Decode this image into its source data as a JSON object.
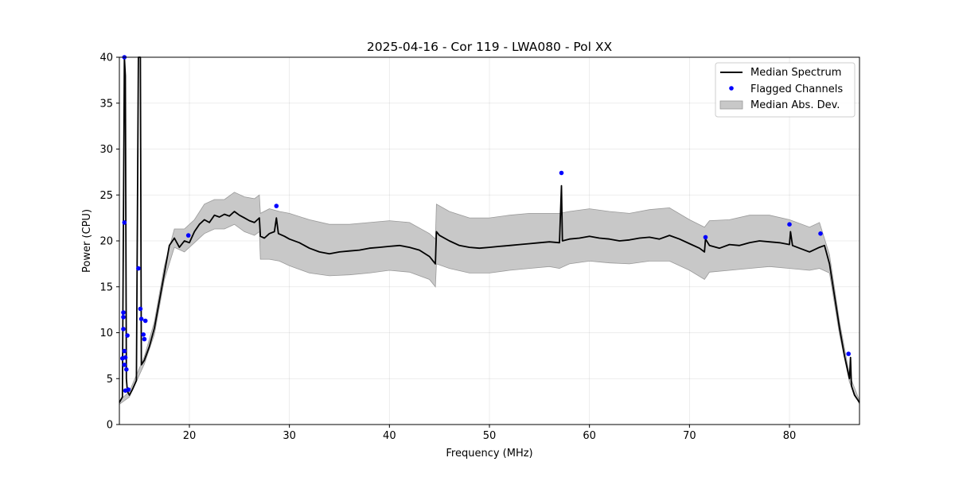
{
  "chart_data": {
    "type": "line",
    "title": "2025-04-16 - Cor 119 - LWA080 - Pol XX",
    "xlabel": "Frequency (MHz)",
    "ylabel": "Power (CPU)",
    "xlim": [
      13.0,
      87.0
    ],
    "ylim": [
      0,
      40
    ],
    "xticks": [
      20,
      30,
      40,
      50,
      60,
      70,
      80
    ],
    "yticks": [
      0,
      5,
      10,
      15,
      20,
      25,
      30,
      35,
      40
    ],
    "grid": true,
    "legend_position": "top-right",
    "series": [
      {
        "name": "Median Spectrum",
        "color": "#000000",
        "points": [
          [
            13.0,
            2.4
          ],
          [
            13.3,
            3.0
          ],
          [
            13.5,
            40.0
          ],
          [
            13.6,
            38.0
          ],
          [
            13.7,
            5.0
          ],
          [
            13.8,
            3.6
          ],
          [
            14.0,
            3.2
          ],
          [
            14.3,
            3.8
          ],
          [
            14.7,
            4.8
          ],
          [
            14.9,
            40.0
          ],
          [
            15.1,
            40.0
          ],
          [
            15.2,
            6.5
          ],
          [
            15.5,
            7.0
          ],
          [
            16.0,
            8.5
          ],
          [
            16.5,
            10.5
          ],
          [
            17.0,
            13.5
          ],
          [
            17.5,
            16.5
          ],
          [
            18.0,
            19.5
          ],
          [
            18.5,
            20.3
          ],
          [
            19.0,
            19.3
          ],
          [
            19.5,
            20.0
          ],
          [
            20.0,
            19.8
          ],
          [
            20.5,
            21.0
          ],
          [
            21.0,
            21.8
          ],
          [
            21.5,
            22.3
          ],
          [
            22.0,
            22.0
          ],
          [
            22.5,
            22.8
          ],
          [
            23.0,
            22.6
          ],
          [
            23.5,
            22.9
          ],
          [
            24.0,
            22.7
          ],
          [
            24.5,
            23.2
          ],
          [
            25.0,
            22.8
          ],
          [
            25.5,
            22.5
          ],
          [
            26.0,
            22.2
          ],
          [
            26.5,
            22.0
          ],
          [
            27.0,
            22.5
          ],
          [
            27.1,
            20.5
          ],
          [
            27.5,
            20.3
          ],
          [
            28.0,
            20.8
          ],
          [
            28.5,
            21.0
          ],
          [
            28.7,
            22.5
          ],
          [
            28.9,
            20.8
          ],
          [
            29.5,
            20.5
          ],
          [
            30.0,
            20.2
          ],
          [
            31.0,
            19.8
          ],
          [
            32.0,
            19.2
          ],
          [
            33.0,
            18.8
          ],
          [
            34.0,
            18.6
          ],
          [
            35.0,
            18.8
          ],
          [
            36.0,
            18.9
          ],
          [
            37.0,
            19.0
          ],
          [
            38.0,
            19.2
          ],
          [
            39.0,
            19.3
          ],
          [
            40.0,
            19.4
          ],
          [
            41.0,
            19.5
          ],
          [
            42.0,
            19.3
          ],
          [
            43.0,
            19.0
          ],
          [
            44.0,
            18.3
          ],
          [
            44.6,
            17.5
          ],
          [
            44.7,
            21.0
          ],
          [
            45.0,
            20.6
          ],
          [
            46.0,
            20.0
          ],
          [
            47.0,
            19.5
          ],
          [
            48.0,
            19.3
          ],
          [
            49.0,
            19.2
          ],
          [
            50.0,
            19.3
          ],
          [
            51.0,
            19.4
          ],
          [
            52.0,
            19.5
          ],
          [
            53.0,
            19.6
          ],
          [
            54.0,
            19.7
          ],
          [
            55.0,
            19.8
          ],
          [
            56.0,
            19.9
          ],
          [
            57.0,
            19.8
          ],
          [
            57.2,
            26.0
          ],
          [
            57.3,
            20.0
          ],
          [
            58.0,
            20.2
          ],
          [
            59.0,
            20.3
          ],
          [
            60.0,
            20.5
          ],
          [
            61.0,
            20.3
          ],
          [
            62.0,
            20.2
          ],
          [
            63.0,
            20.0
          ],
          [
            64.0,
            20.1
          ],
          [
            65.0,
            20.3
          ],
          [
            66.0,
            20.4
          ],
          [
            67.0,
            20.2
          ],
          [
            68.0,
            20.6
          ],
          [
            69.0,
            20.2
          ],
          [
            70.0,
            19.7
          ],
          [
            71.0,
            19.2
          ],
          [
            71.5,
            18.8
          ],
          [
            71.6,
            20.2
          ],
          [
            72.0,
            19.5
          ],
          [
            73.0,
            19.2
          ],
          [
            74.0,
            19.6
          ],
          [
            75.0,
            19.5
          ],
          [
            76.0,
            19.8
          ],
          [
            77.0,
            20.0
          ],
          [
            78.0,
            19.9
          ],
          [
            79.0,
            19.8
          ],
          [
            80.0,
            19.6
          ],
          [
            80.1,
            21.0
          ],
          [
            80.3,
            19.5
          ],
          [
            81.0,
            19.2
          ],
          [
            82.0,
            18.8
          ],
          [
            83.0,
            19.3
          ],
          [
            83.5,
            19.5
          ],
          [
            84.0,
            17.5
          ],
          [
            84.5,
            14.0
          ],
          [
            85.0,
            10.5
          ],
          [
            85.5,
            7.5
          ],
          [
            86.0,
            5.0
          ],
          [
            86.1,
            7.3
          ],
          [
            86.2,
            4.2
          ],
          [
            86.5,
            3.2
          ],
          [
            87.0,
            2.4
          ]
        ]
      },
      {
        "name": "Median Abs. Dev.",
        "color": "#c8c8c8",
        "band": [
          [
            13.0,
            2.2,
            2.6
          ],
          [
            14.0,
            3.0,
            3.6
          ],
          [
            15.5,
            6.6,
            7.4
          ],
          [
            16.5,
            9.8,
            11.2
          ],
          [
            17.5,
            15.8,
            17.3
          ],
          [
            18.5,
            19.3,
            21.3
          ],
          [
            19.5,
            18.8,
            21.3
          ],
          [
            20.5,
            19.8,
            22.3
          ],
          [
            21.5,
            20.8,
            24.0
          ],
          [
            22.5,
            21.3,
            24.5
          ],
          [
            23.5,
            21.3,
            24.5
          ],
          [
            24.5,
            21.8,
            25.3
          ],
          [
            25.5,
            21.0,
            24.8
          ],
          [
            26.5,
            20.6,
            24.6
          ],
          [
            27.0,
            21.0,
            25.0
          ],
          [
            27.1,
            18.0,
            23.0
          ],
          [
            28.0,
            18.0,
            23.5
          ],
          [
            29.0,
            17.8,
            23.2
          ],
          [
            30.0,
            17.3,
            23.0
          ],
          [
            32.0,
            16.5,
            22.3
          ],
          [
            34.0,
            16.2,
            21.8
          ],
          [
            36.0,
            16.3,
            21.8
          ],
          [
            38.0,
            16.5,
            22.0
          ],
          [
            40.0,
            16.8,
            22.2
          ],
          [
            42.0,
            16.6,
            22.0
          ],
          [
            44.0,
            15.8,
            20.8
          ],
          [
            44.6,
            15.0,
            20.2
          ],
          [
            44.7,
            17.5,
            24.0
          ],
          [
            46.0,
            17.0,
            23.2
          ],
          [
            48.0,
            16.5,
            22.5
          ],
          [
            50.0,
            16.5,
            22.5
          ],
          [
            52.0,
            16.8,
            22.8
          ],
          [
            54.0,
            17.0,
            23.0
          ],
          [
            56.0,
            17.2,
            23.0
          ],
          [
            57.0,
            17.0,
            23.0
          ],
          [
            58.0,
            17.5,
            23.2
          ],
          [
            60.0,
            17.8,
            23.5
          ],
          [
            62.0,
            17.6,
            23.2
          ],
          [
            64.0,
            17.5,
            23.0
          ],
          [
            66.0,
            17.8,
            23.4
          ],
          [
            68.0,
            17.8,
            23.6
          ],
          [
            70.0,
            16.8,
            22.3
          ],
          [
            71.5,
            15.8,
            21.5
          ],
          [
            72.0,
            16.6,
            22.2
          ],
          [
            74.0,
            16.8,
            22.3
          ],
          [
            76.0,
            17.0,
            22.8
          ],
          [
            78.0,
            17.2,
            22.8
          ],
          [
            80.0,
            17.0,
            22.3
          ],
          [
            82.0,
            16.8,
            21.5
          ],
          [
            83.0,
            17.0,
            22.0
          ],
          [
            84.0,
            16.5,
            18.5
          ],
          [
            85.0,
            9.8,
            11.2
          ],
          [
            86.0,
            4.6,
            5.4
          ],
          [
            87.0,
            2.2,
            2.6
          ]
        ]
      }
    ],
    "flagged_channels": {
      "name": "Flagged Channels",
      "color": "#0000ff",
      "points": [
        [
          13.5,
          40.0
        ],
        [
          13.5,
          22.0
        ],
        [
          13.4,
          12.2
        ],
        [
          13.4,
          11.7
        ],
        [
          13.4,
          10.4
        ],
        [
          13.5,
          8.0
        ],
        [
          13.6,
          7.3
        ],
        [
          13.3,
          7.2
        ],
        [
          13.5,
          6.5
        ],
        [
          13.7,
          6.0
        ],
        [
          13.8,
          9.7
        ],
        [
          13.6,
          3.7
        ],
        [
          13.9,
          3.8
        ],
        [
          14.9,
          17.0
        ],
        [
          15.1,
          12.6
        ],
        [
          15.2,
          11.5
        ],
        [
          15.6,
          11.3
        ],
        [
          15.4,
          9.8
        ],
        [
          15.5,
          9.3
        ],
        [
          19.9,
          20.6
        ],
        [
          28.7,
          23.8
        ],
        [
          57.2,
          27.4
        ],
        [
          71.6,
          20.4
        ],
        [
          80.0,
          21.8
        ],
        [
          83.1,
          20.8
        ],
        [
          85.9,
          7.7
        ]
      ]
    },
    "legend": [
      "Median Spectrum",
      "Flagged Channels",
      "Median Abs. Dev."
    ]
  }
}
